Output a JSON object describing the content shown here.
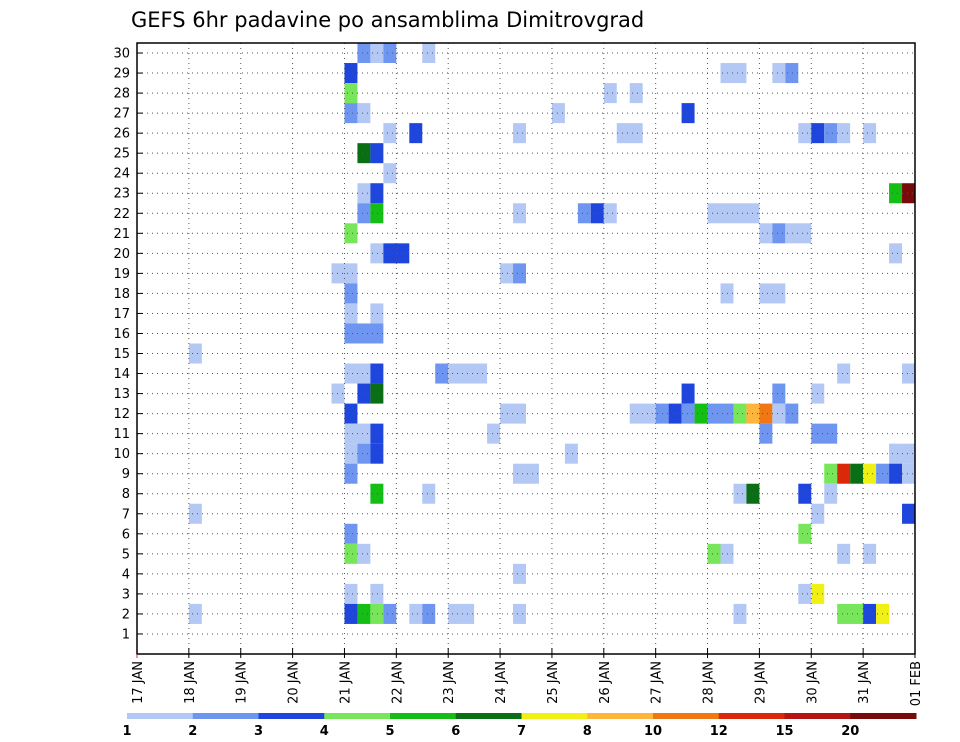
{
  "chart_data": {
    "type": "heatmap",
    "title": "GEFS 6hr padavine po ansamblima Dimitrovgrad",
    "y_members": [
      "1",
      "2",
      "3",
      "4",
      "5",
      "6",
      "7",
      "8",
      "9",
      "10",
      "11",
      "12",
      "13",
      "14",
      "15",
      "16",
      "17",
      "18",
      "19",
      "20",
      "21",
      "22",
      "23",
      "24",
      "25",
      "26",
      "27",
      "28",
      "29",
      "30"
    ],
    "x_ticks": [
      "17 JAN",
      "18 JAN",
      "19 JAN",
      "20 JAN",
      "21 JAN",
      "22 JAN",
      "23 JAN",
      "24 JAN",
      "25 JAN",
      "26 JAN",
      "27 JAN",
      "28 JAN",
      "29 JAN",
      "30 JAN",
      "31 JAN",
      "01 FEB"
    ],
    "grid": true,
    "legend": {
      "position": "bottom",
      "labels": [
        "1",
        "2",
        "3",
        "4",
        "5",
        "6",
        "7",
        "8",
        "10",
        "12",
        "15",
        "20"
      ],
      "colors": [
        "#b4c8f5",
        "#6e96f0",
        "#1e46dc",
        "#78e65a",
        "#14be14",
        "#0a6e14",
        "#f0f014",
        "#ffb43c",
        "#f07814",
        "#dc280a",
        "#b41414",
        "#780a0a"
      ]
    },
    "note_units": "x = day index from 17 JAN (0 = 17 JAN 00Z, step 0.25 = 6h); level = legend class index 0..11",
    "cells": [
      {
        "m": 30,
        "x": 4.25,
        "w": 0.25,
        "l": 1
      },
      {
        "m": 30,
        "x": 4.5,
        "w": 0.25,
        "l": 0
      },
      {
        "m": 30,
        "x": 4.75,
        "w": 0.25,
        "l": 1
      },
      {
        "m": 30,
        "x": 5.5,
        "w": 0.25,
        "l": 0
      },
      {
        "m": 29,
        "x": 4,
        "w": 0.25,
        "l": 2
      },
      {
        "m": 29,
        "x": 11.25,
        "w": 0.5,
        "l": 0
      },
      {
        "m": 29,
        "x": 12.25,
        "w": 0.25,
        "l": 0
      },
      {
        "m": 29,
        "x": 12.5,
        "w": 0.25,
        "l": 1
      },
      {
        "m": 28,
        "x": 4,
        "w": 0.25,
        "l": 3
      },
      {
        "m": 28,
        "x": 9,
        "w": 0.25,
        "l": 0
      },
      {
        "m": 28,
        "x": 9.5,
        "w": 0.25,
        "l": 0
      },
      {
        "m": 27,
        "x": 4,
        "w": 0.25,
        "l": 1
      },
      {
        "m": 27,
        "x": 4.25,
        "w": 0.25,
        "l": 0
      },
      {
        "m": 27,
        "x": 8,
        "w": 0.25,
        "l": 0
      },
      {
        "m": 27,
        "x": 10.5,
        "w": 0.25,
        "l": 2
      },
      {
        "m": 26,
        "x": 4.75,
        "w": 0.25,
        "l": 0
      },
      {
        "m": 26,
        "x": 5.25,
        "w": 0.25,
        "l": 2
      },
      {
        "m": 26,
        "x": 7.25,
        "w": 0.25,
        "l": 0
      },
      {
        "m": 26,
        "x": 9.25,
        "w": 0.5,
        "l": 0
      },
      {
        "m": 26,
        "x": 12.75,
        "w": 0.25,
        "l": 0
      },
      {
        "m": 26,
        "x": 13,
        "w": 0.25,
        "l": 2
      },
      {
        "m": 26,
        "x": 13.25,
        "w": 0.25,
        "l": 1
      },
      {
        "m": 26,
        "x": 13.5,
        "w": 0.25,
        "l": 0
      },
      {
        "m": 26,
        "x": 14,
        "w": 0.25,
        "l": 0
      },
      {
        "m": 25,
        "x": 4.25,
        "w": 0.25,
        "l": 5
      },
      {
        "m": 25,
        "x": 4.5,
        "w": 0.25,
        "l": 2
      },
      {
        "m": 24,
        "x": 4.75,
        "w": 0.25,
        "l": 0
      },
      {
        "m": 23,
        "x": 4.25,
        "w": 0.25,
        "l": 0
      },
      {
        "m": 23,
        "x": 4.5,
        "w": 0.25,
        "l": 2
      },
      {
        "m": 23,
        "x": 14.5,
        "w": 0.25,
        "l": 4
      },
      {
        "m": 23,
        "x": 14.75,
        "w": 0.25,
        "l": 11
      },
      {
        "m": 22,
        "x": 4.25,
        "w": 0.25,
        "l": 1
      },
      {
        "m": 22,
        "x": 4.5,
        "w": 0.25,
        "l": 4
      },
      {
        "m": 22,
        "x": 7.25,
        "w": 0.25,
        "l": 0
      },
      {
        "m": 22,
        "x": 8.5,
        "w": 0.25,
        "l": 1
      },
      {
        "m": 22,
        "x": 8.75,
        "w": 0.25,
        "l": 2
      },
      {
        "m": 22,
        "x": 9,
        "w": 0.25,
        "l": 0
      },
      {
        "m": 22,
        "x": 11,
        "w": 1,
        "l": 0
      },
      {
        "m": 21,
        "x": 4,
        "w": 0.25,
        "l": 3
      },
      {
        "m": 21,
        "x": 12,
        "w": 0.25,
        "l": 0
      },
      {
        "m": 21,
        "x": 12.25,
        "w": 0.25,
        "l": 1
      },
      {
        "m": 21,
        "x": 12.5,
        "w": 0.5,
        "l": 0
      },
      {
        "m": 20,
        "x": 4.5,
        "w": 0.25,
        "l": 0
      },
      {
        "m": 20,
        "x": 4.75,
        "w": 0.5,
        "l": 2
      },
      {
        "m": 20,
        "x": 14.5,
        "w": 0.25,
        "l": 0
      },
      {
        "m": 19,
        "x": 3.75,
        "w": 0.5,
        "l": 0
      },
      {
        "m": 19,
        "x": 7,
        "w": 0.25,
        "l": 0
      },
      {
        "m": 19,
        "x": 7.25,
        "w": 0.25,
        "l": 1
      },
      {
        "m": 18,
        "x": 4,
        "w": 0.25,
        "l": 1
      },
      {
        "m": 18,
        "x": 11.25,
        "w": 0.25,
        "l": 0
      },
      {
        "m": 18,
        "x": 12,
        "w": 0.5,
        "l": 0
      },
      {
        "m": 17,
        "x": 4,
        "w": 0.25,
        "l": 0
      },
      {
        "m": 17,
        "x": 4.5,
        "w": 0.25,
        "l": 0
      },
      {
        "m": 16,
        "x": 4,
        "w": 0.75,
        "l": 1
      },
      {
        "m": 15,
        "x": 1,
        "w": 0.25,
        "l": 0
      },
      {
        "m": 14,
        "x": 4,
        "w": 0.5,
        "l": 0
      },
      {
        "m": 14,
        "x": 4.5,
        "w": 0.25,
        "l": 2
      },
      {
        "m": 14,
        "x": 5.75,
        "w": 0.25,
        "l": 1
      },
      {
        "m": 14,
        "x": 6,
        "w": 0.75,
        "l": 0
      },
      {
        "m": 14,
        "x": 13.5,
        "w": 0.25,
        "l": 0
      },
      {
        "m": 14,
        "x": 14.75,
        "w": 0.25,
        "l": 0
      },
      {
        "m": 13,
        "x": 3.75,
        "w": 0.25,
        "l": 0
      },
      {
        "m": 13,
        "x": 4.25,
        "w": 0.25,
        "l": 2
      },
      {
        "m": 13,
        "x": 4.5,
        "w": 0.25,
        "l": 5
      },
      {
        "m": 13,
        "x": 10.5,
        "w": 0.25,
        "l": 2
      },
      {
        "m": 13,
        "x": 12.25,
        "w": 0.25,
        "l": 1
      },
      {
        "m": 13,
        "x": 13,
        "w": 0.25,
        "l": 0
      },
      {
        "m": 12,
        "x": 4,
        "w": 0.25,
        "l": 2
      },
      {
        "m": 12,
        "x": 7,
        "w": 0.5,
        "l": 0
      },
      {
        "m": 12,
        "x": 9.5,
        "w": 0.5,
        "l": 0
      },
      {
        "m": 12,
        "x": 10,
        "w": 0.25,
        "l": 1
      },
      {
        "m": 12,
        "x": 10.25,
        "w": 0.25,
        "l": 2
      },
      {
        "m": 12,
        "x": 10.5,
        "w": 0.25,
        "l": 1
      },
      {
        "m": 12,
        "x": 10.75,
        "w": 0.25,
        "l": 4
      },
      {
        "m": 12,
        "x": 11,
        "w": 0.5,
        "l": 1
      },
      {
        "m": 12,
        "x": 11.5,
        "w": 0.25,
        "l": 3
      },
      {
        "m": 12,
        "x": 11.75,
        "w": 0.25,
        "l": 7
      },
      {
        "m": 12,
        "x": 12,
        "w": 0.25,
        "l": 8
      },
      {
        "m": 12,
        "x": 12.25,
        "w": 0.25,
        "l": 0
      },
      {
        "m": 12,
        "x": 12.5,
        "w": 0.25,
        "l": 1
      },
      {
        "m": 11,
        "x": 4,
        "w": 0.5,
        "l": 0
      },
      {
        "m": 11,
        "x": 4.5,
        "w": 0.25,
        "l": 2
      },
      {
        "m": 11,
        "x": 6.75,
        "w": 0.25,
        "l": 0
      },
      {
        "m": 11,
        "x": 12,
        "w": 0.25,
        "l": 1
      },
      {
        "m": 11,
        "x": 13,
        "w": 0.5,
        "l": 1
      },
      {
        "m": 10,
        "x": 4,
        "w": 0.25,
        "l": 0
      },
      {
        "m": 10,
        "x": 4.25,
        "w": 0.25,
        "l": 1
      },
      {
        "m": 10,
        "x": 4.5,
        "w": 0.25,
        "l": 2
      },
      {
        "m": 10,
        "x": 8.25,
        "w": 0.25,
        "l": 0
      },
      {
        "m": 10,
        "x": 14.5,
        "w": 0.25,
        "l": 0
      },
      {
        "m": 10,
        "x": 14.75,
        "w": 0.25,
        "l": 0
      },
      {
        "m": 9,
        "x": 4,
        "w": 0.25,
        "l": 1
      },
      {
        "m": 9,
        "x": 7.25,
        "w": 0.5,
        "l": 0
      },
      {
        "m": 9,
        "x": 13.25,
        "w": 0.25,
        "l": 3
      },
      {
        "m": 9,
        "x": 13.5,
        "w": 0.25,
        "l": 9
      },
      {
        "m": 9,
        "x": 13.75,
        "w": 0.25,
        "l": 5
      },
      {
        "m": 9,
        "x": 14,
        "w": 0.25,
        "l": 6
      },
      {
        "m": 9,
        "x": 14.25,
        "w": 0.25,
        "l": 1
      },
      {
        "m": 9,
        "x": 14.5,
        "w": 0.25,
        "l": 2
      },
      {
        "m": 9,
        "x": 14.75,
        "w": 0.25,
        "l": 0
      },
      {
        "m": 8,
        "x": 4.5,
        "w": 0.25,
        "l": 4
      },
      {
        "m": 8,
        "x": 5.5,
        "w": 0.25,
        "l": 0
      },
      {
        "m": 8,
        "x": 11.5,
        "w": 0.25,
        "l": 0
      },
      {
        "m": 8,
        "x": 11.75,
        "w": 0.25,
        "l": 5
      },
      {
        "m": 8,
        "x": 12.75,
        "w": 0.25,
        "l": 2
      },
      {
        "m": 8,
        "x": 13.25,
        "w": 0.25,
        "l": 0
      },
      {
        "m": 7,
        "x": 1,
        "w": 0.25,
        "l": 0
      },
      {
        "m": 7,
        "x": 13,
        "w": 0.25,
        "l": 0
      },
      {
        "m": 7,
        "x": 14.75,
        "w": 0.25,
        "l": 2
      },
      {
        "m": 6,
        "x": 4,
        "w": 0.25,
        "l": 1
      },
      {
        "m": 6,
        "x": 12.75,
        "w": 0.25,
        "l": 3
      },
      {
        "m": 5,
        "x": 4,
        "w": 0.25,
        "l": 3
      },
      {
        "m": 5,
        "x": 4.25,
        "w": 0.25,
        "l": 0
      },
      {
        "m": 5,
        "x": 11,
        "w": 0.25,
        "l": 3
      },
      {
        "m": 5,
        "x": 11.25,
        "w": 0.25,
        "l": 0
      },
      {
        "m": 5,
        "x": 13.5,
        "w": 0.25,
        "l": 0
      },
      {
        "m": 5,
        "x": 14,
        "w": 0.25,
        "l": 0
      },
      {
        "m": 4,
        "x": 7.25,
        "w": 0.25,
        "l": 0
      },
      {
        "m": 3,
        "x": 4,
        "w": 0.25,
        "l": 0
      },
      {
        "m": 3,
        "x": 4.5,
        "w": 0.25,
        "l": 0
      },
      {
        "m": 3,
        "x": 12.75,
        "w": 0.25,
        "l": 0
      },
      {
        "m": 3,
        "x": 13,
        "w": 0.25,
        "l": 6
      },
      {
        "m": 2,
        "x": 1,
        "w": 0.25,
        "l": 0
      },
      {
        "m": 2,
        "x": 4,
        "w": 0.25,
        "l": 2
      },
      {
        "m": 2,
        "x": 4.25,
        "w": 0.25,
        "l": 4
      },
      {
        "m": 2,
        "x": 4.5,
        "w": 0.25,
        "l": 3
      },
      {
        "m": 2,
        "x": 4.75,
        "w": 0.25,
        "l": 1
      },
      {
        "m": 2,
        "x": 5.25,
        "w": 0.25,
        "l": 0
      },
      {
        "m": 2,
        "x": 5.5,
        "w": 0.25,
        "l": 1
      },
      {
        "m": 2,
        "x": 6,
        "w": 0.5,
        "l": 0
      },
      {
        "m": 2,
        "x": 7.25,
        "w": 0.25,
        "l": 0
      },
      {
        "m": 2,
        "x": 11.5,
        "w": 0.25,
        "l": 0
      },
      {
        "m": 2,
        "x": 13.5,
        "w": 0.5,
        "l": 3
      },
      {
        "m": 2,
        "x": 14,
        "w": 0.25,
        "l": 2
      },
      {
        "m": 2,
        "x": 14.25,
        "w": 0.25,
        "l": 6
      }
    ]
  }
}
